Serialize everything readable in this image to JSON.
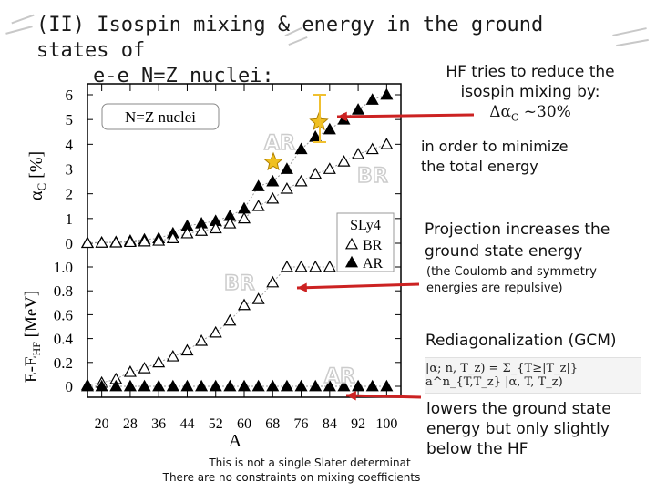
{
  "title": {
    "line1": "(II) Isospin mixing & energy in the ground states of",
    "line2": "e-e N=Z nuclei:"
  },
  "notes": {
    "hf_line1": "HF tries to reduce the",
    "hf_line2": "isospin mixing by:",
    "hf_delta": "Δα",
    "hf_delta_sub": "C",
    "hf_delta_val": " ~30%",
    "minimize1": "in order to minimize",
    "minimize2": "the total energy",
    "proj1": "Projection increases the",
    "proj2": "ground state energy",
    "coul1": "(the Coulomb and symmetry",
    "coul2": "energies are repulsive)",
    "rediag": "Rediagonalization (GCM)",
    "formula": "|α; n, T_z) = Σ_{T≥|T_z|} a^n_{T,T_z} |α, T, T_z)",
    "lowers1": "lowers the ground state",
    "lowers2": "energy but only slightly",
    "lowers3": "below the HF",
    "foot1": "This is not a single Slater determinat",
    "foot2": "There are no constraints on mixing coefficients"
  },
  "labels": {
    "upper_ylabel": "α",
    "upper_ylabel_sub": "C",
    "upper_ylabel_unit": " [%]",
    "lower_ylabel": "E-E",
    "lower_ylabel_sub": "HF",
    "lower_ylabel_unit": " [MeV]",
    "xlabel": "A",
    "inset": "N=Z nuclei",
    "legend_title": "SLy4",
    "legend_br": "BR",
    "legend_ar": "AR",
    "tag_ar_upper": "AR",
    "tag_br_upper": "BR",
    "tag_br_lower": "BR",
    "tag_ar_lower": "AR"
  },
  "colors": {
    "arrow": "#cc2222",
    "star": "#f0c020",
    "outline": "#cccccc",
    "bracket": "#f0c030"
  },
  "chart_data": [
    {
      "type": "scatter",
      "panel": "upper",
      "ylabel": "αC [%]",
      "xlim": [
        16,
        104
      ],
      "ylim": [
        0,
        6
      ],
      "yticks": [
        0,
        1,
        2,
        3,
        4,
        5,
        6
      ],
      "series": [
        {
          "name": "AR",
          "marker": "filled-triangle",
          "x": [
            16,
            20,
            24,
            28,
            32,
            36,
            40,
            44,
            48,
            52,
            56,
            60,
            64,
            68,
            72,
            76,
            80,
            84,
            88,
            92,
            96,
            100
          ],
          "y": [
            0.02,
            0.03,
            0.05,
            0.1,
            0.15,
            0.2,
            0.4,
            0.7,
            0.8,
            0.9,
            1.1,
            1.4,
            2.3,
            2.5,
            3.0,
            3.8,
            4.3,
            4.6,
            5.0,
            5.4,
            5.8,
            6.0
          ]
        },
        {
          "name": "BR",
          "marker": "open-triangle",
          "x": [
            16,
            20,
            24,
            28,
            32,
            36,
            40,
            44,
            48,
            52,
            56,
            60,
            64,
            68,
            72,
            76,
            80,
            84,
            88,
            92,
            96,
            100
          ],
          "y": [
            0.01,
            0.02,
            0.03,
            0.05,
            0.07,
            0.1,
            0.2,
            0.4,
            0.5,
            0.6,
            0.8,
            1.0,
            1.5,
            1.8,
            2.2,
            2.5,
            2.8,
            3.0,
            3.3,
            3.6,
            3.8,
            4.0
          ]
        }
      ]
    },
    {
      "type": "scatter",
      "panel": "lower",
      "xlabel": "A",
      "ylabel": "E-EHF [MeV]",
      "xlim": [
        16,
        104
      ],
      "ylim": [
        0,
        1.0
      ],
      "xticks": [
        20,
        28,
        36,
        44,
        52,
        60,
        68,
        76,
        84,
        92,
        100
      ],
      "yticks": [
        0,
        0.2,
        0.4,
        0.6,
        0.8,
        1.0
      ],
      "series": [
        {
          "name": "BR",
          "marker": "open-triangle",
          "x": [
            16,
            20,
            24,
            28,
            32,
            36,
            40,
            44,
            48,
            52,
            56,
            60,
            64,
            68,
            72,
            76,
            80,
            84,
            88,
            92,
            96,
            100
          ],
          "y": [
            0.01,
            0.03,
            0.06,
            0.12,
            0.15,
            0.2,
            0.25,
            0.3,
            0.38,
            0.45,
            0.55,
            0.68,
            0.73,
            0.87,
            1.0,
            1.0,
            1.0,
            1.0,
            1.0,
            1.0,
            1.0,
            1.0
          ]
        },
        {
          "name": "AR",
          "marker": "filled-triangle",
          "x": [
            16,
            20,
            24,
            28,
            32,
            36,
            40,
            44,
            48,
            52,
            56,
            60,
            64,
            68,
            72,
            76,
            80,
            84,
            88,
            92,
            96,
            100
          ],
          "y": [
            0,
            0,
            0,
            0,
            0,
            0,
            0,
            0,
            0,
            0,
            0,
            0,
            0,
            0,
            0,
            0,
            0,
            0,
            0,
            0,
            0,
            0
          ]
        }
      ]
    }
  ]
}
